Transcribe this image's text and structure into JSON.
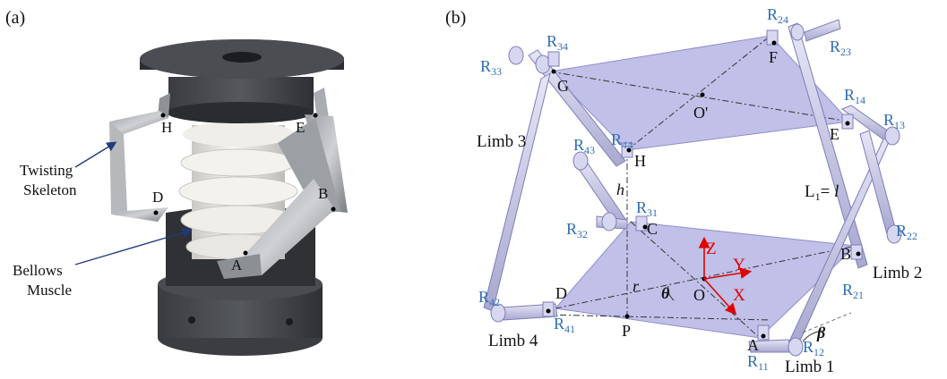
{
  "panel_a": {
    "tag": "(a)",
    "labels": {
      "twisting_line1": "Twisting",
      "twisting_line2": "Skeleton",
      "bellows_line1": "Bellows",
      "bellows_line2": "Muscle",
      "H": "H",
      "E": "E",
      "D": "D",
      "B": "B",
      "A": "A"
    }
  },
  "panel_b": {
    "tag": "(b)",
    "points": {
      "G": "G",
      "F": "F",
      "O_prime": "O'",
      "E": "E",
      "H": "H",
      "C": "C",
      "B": "B",
      "D": "D",
      "O": "O",
      "A": "A",
      "P": "P"
    },
    "limbs": {
      "limb1": "Limb 1",
      "limb2": "Limb 2",
      "limb3": "Limb 3",
      "limb4": "Limb 4"
    },
    "joints": {
      "R24": {
        "base": "R",
        "sub": "24"
      },
      "R23": {
        "base": "R",
        "sub": "23"
      },
      "R34": {
        "base": "R",
        "sub": "34"
      },
      "R33": {
        "base": "R",
        "sub": "33"
      },
      "R14": {
        "base": "R",
        "sub": "14"
      },
      "R13": {
        "base": "R",
        "sub": "13"
      },
      "R44": {
        "base": "R",
        "sub": "44"
      },
      "R43": {
        "base": "R",
        "sub": "43"
      },
      "R31": {
        "base": "R",
        "sub": "31"
      },
      "R32": {
        "base": "R",
        "sub": "32"
      },
      "R22": {
        "base": "R",
        "sub": "22"
      },
      "R21": {
        "base": "R",
        "sub": "21"
      },
      "R42": {
        "base": "R",
        "sub": "42"
      },
      "R41": {
        "base": "R",
        "sub": "41"
      },
      "R11": {
        "base": "R",
        "sub": "11"
      },
      "R12": {
        "base": "R",
        "sub": "12"
      }
    },
    "symbols": {
      "h": "h",
      "r": "r",
      "theta": "θ",
      "beta": "β",
      "L1_base": "L",
      "L1_sub": "1",
      "L1_rest": "= ",
      "L1_var": "l"
    },
    "axes": {
      "x": "X",
      "y": "Y",
      "z": "Z"
    },
    "colors": {
      "plate": "#b9b9e6",
      "axis": "#e00000",
      "joint_label": "#2f6db3",
      "skeleton": "#6b6e74",
      "bellows": "#ecebe6"
    }
  }
}
